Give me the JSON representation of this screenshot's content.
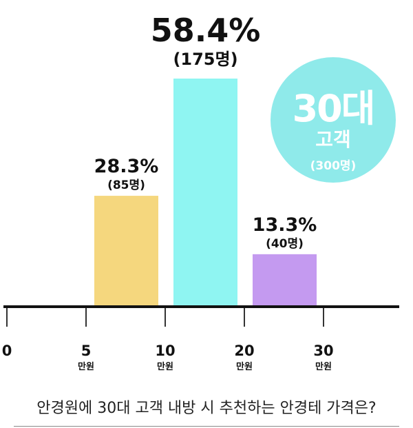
{
  "chart_data": {
    "type": "bar",
    "x_ticks": [
      {
        "value": "0",
        "unit": ""
      },
      {
        "value": "5",
        "unit": "만원"
      },
      {
        "value": "10",
        "unit": "만원"
      },
      {
        "value": "20",
        "unit": "만원"
      },
      {
        "value": "30",
        "unit": "만원"
      }
    ],
    "bars": [
      {
        "range": "5-10",
        "percent_label": "28.3%",
        "count_label": "(85명)",
        "value": 28.3,
        "color": "#f5d77e"
      },
      {
        "range": "10-20",
        "percent_label": "58.4%",
        "count_label": "(175명)",
        "value": 58.4,
        "color": "#8ff5f2"
      },
      {
        "range": "20-30",
        "percent_label": "13.3%",
        "count_label": "(40명)",
        "value": 13.3,
        "color": "#c49af0"
      }
    ],
    "ylim": [
      0,
      58.4
    ]
  },
  "badge": {
    "title": "30대",
    "subtitle": "고객",
    "count": "(300명)",
    "color": "#8feaea"
  },
  "question": "안경원에 30대 고객 내방 시 추천하는 안경테 가격은?"
}
